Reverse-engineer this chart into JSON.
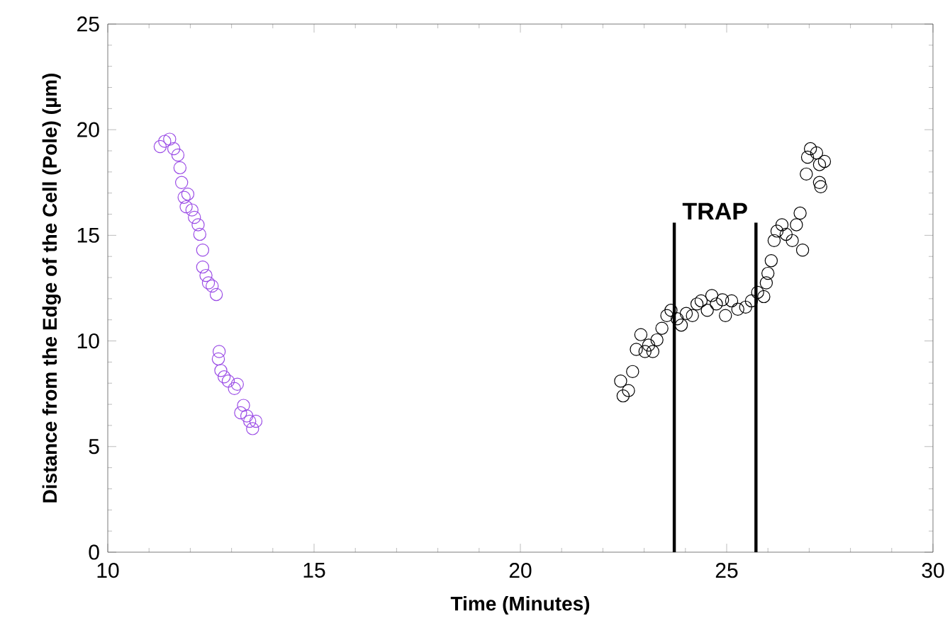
{
  "chart_data": {
    "type": "scatter",
    "xlabel": "Time (Minutes)",
    "ylabel": "Distance from the Edge of the Cell (Pole) (µm)",
    "xlim": [
      10,
      30
    ],
    "ylim": [
      0,
      25
    ],
    "xticks": [
      10,
      15,
      20,
      25,
      30
    ],
    "yticks": [
      0,
      5,
      10,
      15,
      20,
      25
    ],
    "marker": "circle",
    "grid": false,
    "series": [
      {
        "color": "#9b4de6",
        "x": [
          11.27,
          11.38,
          11.5,
          11.6,
          11.7,
          11.75,
          11.79,
          11.85,
          11.94,
          11.9,
          12.04,
          12.1,
          12.19,
          12.23,
          12.3,
          12.3,
          12.38,
          12.44,
          12.53,
          12.63,
          12.7,
          12.68,
          12.74,
          12.82,
          12.92,
          13.14,
          13.07,
          13.22,
          13.29,
          13.37,
          13.44,
          13.51,
          13.59
        ],
        "values": [
          19.2,
          19.45,
          19.55,
          19.1,
          18.8,
          18.2,
          17.5,
          16.8,
          16.95,
          16.35,
          16.2,
          15.85,
          15.5,
          15.05,
          14.3,
          13.5,
          13.1,
          12.75,
          12.6,
          12.2,
          9.5,
          9.15,
          8.6,
          8.3,
          8.1,
          7.95,
          7.75,
          6.6,
          6.95,
          6.45,
          6.2,
          5.85,
          6.2
        ]
      },
      {
        "color": "#000000",
        "x": [
          22.43,
          22.49,
          22.62,
          22.72,
          22.81,
          22.92,
          23.02,
          23.11,
          23.21,
          23.31,
          23.43,
          23.55,
          23.65,
          23.8,
          23.9,
          24.02,
          24.17,
          24.28,
          24.38,
          24.53,
          24.64,
          24.75,
          24.9,
          24.97,
          25.12,
          25.27,
          25.46,
          25.6,
          25.75,
          25.9,
          25.96,
          26.0,
          26.08,
          26.15,
          26.22,
          26.34,
          26.44,
          26.59,
          26.69,
          26.78,
          26.84,
          26.93,
          26.96,
          27.03,
          27.18,
          27.25,
          27.37,
          27.25,
          27.28
        ],
        "values": [
          8.1,
          7.4,
          7.65,
          8.55,
          9.6,
          10.3,
          9.5,
          9.8,
          9.5,
          10.05,
          10.6,
          11.2,
          11.45,
          11.05,
          10.75,
          11.3,
          11.2,
          11.75,
          11.9,
          11.45,
          12.15,
          11.75,
          11.95,
          11.2,
          11.9,
          11.5,
          11.6,
          11.9,
          12.3,
          12.1,
          12.75,
          13.2,
          13.8,
          14.75,
          15.2,
          15.5,
          15.05,
          14.75,
          15.5,
          16.05,
          14.3,
          17.9,
          18.7,
          19.1,
          18.9,
          18.35,
          18.5,
          17.5,
          17.3
        ]
      }
    ],
    "ref_lines": [
      {
        "axis": "x",
        "value": 23.73,
        "color": "#000000"
      },
      {
        "axis": "x",
        "value": 25.71,
        "color": "#000000"
      }
    ],
    "annotations": [
      "TRAP"
    ]
  }
}
